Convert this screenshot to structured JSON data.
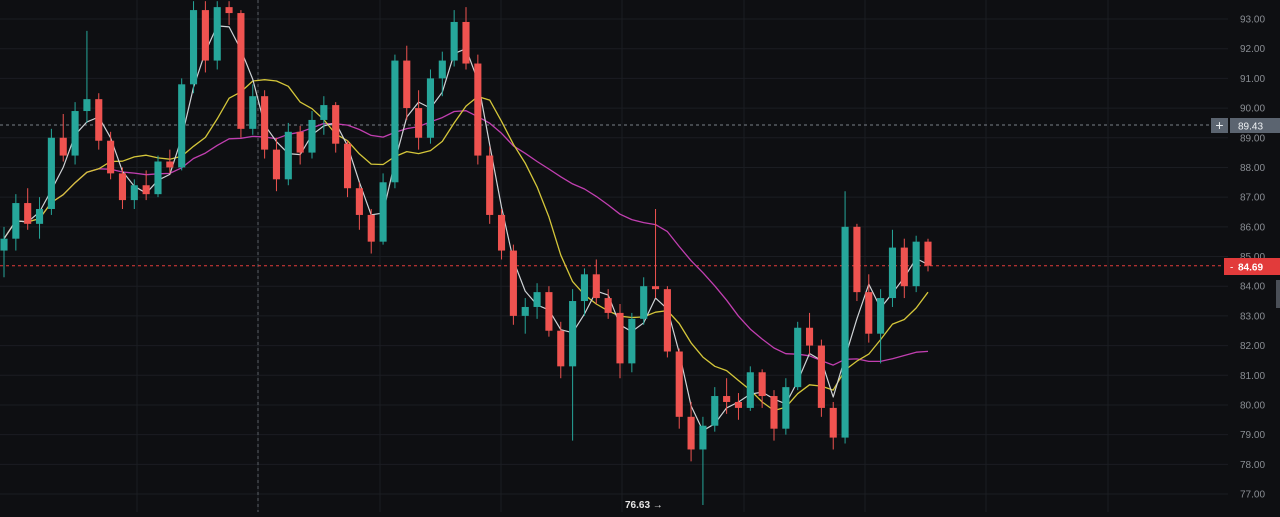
{
  "chart_data": {
    "type": "candlestick",
    "price_axis": {
      "ticks": [
        "93.00",
        "92.00",
        "91.00",
        "90.00",
        "89.00",
        "88.00",
        "87.00",
        "86.00",
        "85.00",
        "84.00",
        "83.00",
        "82.00",
        "81.00",
        "80.00",
        "79.00",
        "78.00",
        "77.00"
      ],
      "range": [
        76.5,
        93.5
      ]
    },
    "crosshair": {
      "price_label": "89.43",
      "price": 89.43,
      "add_icon": "plus-icon"
    },
    "last_price": {
      "label": "84.69",
      "value": 84.69,
      "color": "#e23b3b"
    },
    "low_marker": {
      "label": "76.63 →",
      "value": 76.63
    },
    "colors": {
      "up": "#26a69a",
      "down": "#ef5350",
      "ma_fast": "#cfd3d6",
      "ma_mid": "#d4c63a",
      "ma_slow": "#c13fb0"
    },
    "candles": [
      [
        85.2,
        86.0,
        84.3,
        85.6
      ],
      [
        85.6,
        87.1,
        85.2,
        86.8
      ],
      [
        86.8,
        87.3,
        85.9,
        86.1
      ],
      [
        86.1,
        87.0,
        85.6,
        86.6
      ],
      [
        86.6,
        89.3,
        86.4,
        89.0
      ],
      [
        89.0,
        89.8,
        88.2,
        88.4
      ],
      [
        88.4,
        90.2,
        88.1,
        89.9
      ],
      [
        89.9,
        92.6,
        89.5,
        90.3
      ],
      [
        90.3,
        90.5,
        88.6,
        88.9
      ],
      [
        88.9,
        89.2,
        87.6,
        87.8
      ],
      [
        87.8,
        88.0,
        86.6,
        86.9
      ],
      [
        86.9,
        87.6,
        86.6,
        87.4
      ],
      [
        87.4,
        87.9,
        86.9,
        87.1
      ],
      [
        87.1,
        88.4,
        87.0,
        88.2
      ],
      [
        88.2,
        88.6,
        87.8,
        88.0
      ],
      [
        88.0,
        91.0,
        87.9,
        90.8
      ],
      [
        90.8,
        93.6,
        90.5,
        93.3
      ],
      [
        93.3,
        93.6,
        91.2,
        91.6
      ],
      [
        91.6,
        93.6,
        91.3,
        93.4
      ],
      [
        93.4,
        93.6,
        92.8,
        93.2
      ],
      [
        93.2,
        93.3,
        89.0,
        89.3
      ],
      [
        89.3,
        90.8,
        89.1,
        90.4
      ],
      [
        90.4,
        90.6,
        88.3,
        88.6
      ],
      [
        88.6,
        89.0,
        87.2,
        87.6
      ],
      [
        87.6,
        89.5,
        87.4,
        89.2
      ],
      [
        89.2,
        89.4,
        88.1,
        88.5
      ],
      [
        88.5,
        89.9,
        88.3,
        89.6
      ],
      [
        89.6,
        90.4,
        89.1,
        90.1
      ],
      [
        90.1,
        90.2,
        88.5,
        88.8
      ],
      [
        88.8,
        88.9,
        87.0,
        87.3
      ],
      [
        87.3,
        87.5,
        85.9,
        86.4
      ],
      [
        86.4,
        86.6,
        85.1,
        85.5
      ],
      [
        85.5,
        87.8,
        85.4,
        87.5
      ],
      [
        87.5,
        91.8,
        87.3,
        91.6
      ],
      [
        91.6,
        92.1,
        89.6,
        90.0
      ],
      [
        90.0,
        90.6,
        88.6,
        89.0
      ],
      [
        89.0,
        91.3,
        88.8,
        91.0
      ],
      [
        91.0,
        91.9,
        90.4,
        91.6
      ],
      [
        91.6,
        93.3,
        91.4,
        92.9
      ],
      [
        92.9,
        93.4,
        91.3,
        91.5
      ],
      [
        91.5,
        91.8,
        88.1,
        88.4
      ],
      [
        88.4,
        88.7,
        86.1,
        86.4
      ],
      [
        86.4,
        86.6,
        84.9,
        85.2
      ],
      [
        85.2,
        85.4,
        82.7,
        83.0
      ],
      [
        83.0,
        83.6,
        82.4,
        83.3
      ],
      [
        83.3,
        84.1,
        82.9,
        83.8
      ],
      [
        83.8,
        84.0,
        82.3,
        82.5
      ],
      [
        82.5,
        82.8,
        80.9,
        81.3
      ],
      [
        81.3,
        83.9,
        78.8,
        83.5
      ],
      [
        83.5,
        84.6,
        83.0,
        84.4
      ],
      [
        84.4,
        84.9,
        83.4,
        83.6
      ],
      [
        83.6,
        83.9,
        82.9,
        83.1
      ],
      [
        83.1,
        83.4,
        80.9,
        81.4
      ],
      [
        81.4,
        83.1,
        81.1,
        82.9
      ],
      [
        82.9,
        84.3,
        82.7,
        84.0
      ],
      [
        84.0,
        86.6,
        83.6,
        83.9
      ],
      [
        83.9,
        84.0,
        81.6,
        81.8
      ],
      [
        81.8,
        81.9,
        79.2,
        79.6
      ],
      [
        79.6,
        80.1,
        78.1,
        78.5
      ],
      [
        78.5,
        79.6,
        76.63,
        79.3
      ],
      [
        79.3,
        80.6,
        79.1,
        80.3
      ],
      [
        80.3,
        80.9,
        79.7,
        80.1
      ],
      [
        80.1,
        80.4,
        79.5,
        79.9
      ],
      [
        79.9,
        81.3,
        79.8,
        81.1
      ],
      [
        81.1,
        81.2,
        79.9,
        80.3
      ],
      [
        80.3,
        80.5,
        78.8,
        79.2
      ],
      [
        79.2,
        80.9,
        79.0,
        80.6
      ],
      [
        80.6,
        82.8,
        80.5,
        82.6
      ],
      [
        82.6,
        83.1,
        81.7,
        82.0
      ],
      [
        82.0,
        82.2,
        79.6,
        79.9
      ],
      [
        79.9,
        80.1,
        78.5,
        78.9
      ],
      [
        78.9,
        87.2,
        78.7,
        86.0
      ],
      [
        86.0,
        86.1,
        83.5,
        83.8
      ],
      [
        83.8,
        84.4,
        82.1,
        82.4
      ],
      [
        82.4,
        83.9,
        81.4,
        83.6
      ],
      [
        83.6,
        85.9,
        83.3,
        85.3
      ],
      [
        85.3,
        85.6,
        83.6,
        84.0
      ],
      [
        84.0,
        85.7,
        83.8,
        85.5
      ],
      [
        85.5,
        85.6,
        84.5,
        84.69
      ]
    ]
  }
}
